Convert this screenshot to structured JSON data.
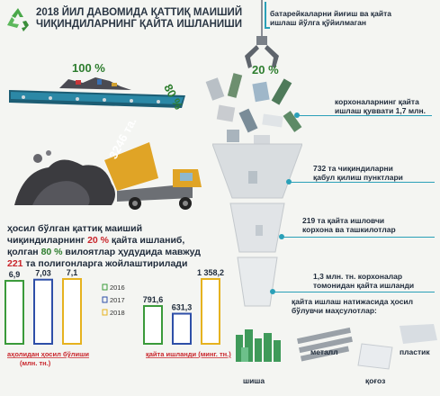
{
  "title": {
    "line1": "2018 ЙИЛ ДАВОМИДА ҚАТТИҚ МАИШИЙ",
    "line2": "ЧИҚИНДИЛАРНИНГ ҚАЙТА ИШЛАНИШИ"
  },
  "top_percent": "100 %",
  "conveyor_percent": "80 %",
  "crane_percent": "20 %",
  "truck_label": "3246 та.",
  "battery_note": {
    "line1": "батарейкаларни йиғиш ва қайта",
    "line2": "ишлаш йўлга қўйилмаган"
  },
  "description": {
    "p1": "ҳосил бўлган қаттиқ маиший",
    "p2a": "чиқиндиларнинг ",
    "p2b": "20 %",
    "p2c": " қайта ишланиб,",
    "p3a": "қолган ",
    "p3b": "80 %",
    "p3c": " вилоятлар ҳудудида мавжуд",
    "p4a": "221",
    "p4b": " та полигонларга жойлаштирилади"
  },
  "funnel_labels": [
    {
      "line1": "корхоналарнинг қайта",
      "line2": "ишлаш қуввати 1,7 млн."
    },
    {
      "line1": "732 та чиқиндиларни",
      "line2": "қабул қилиш пунктлари"
    },
    {
      "line1": "219 та қайта ишловчи",
      "line2": "корхона ва ташкилотлар"
    },
    {
      "line1": "1,3 млн. тн. корхоналар",
      "line2": "томонидан қайта ишланди"
    }
  ],
  "products": {
    "title1": "қайта ишлаш натижасида ҳосил",
    "title2": "бўлувчи маҳсулотлар:",
    "items": [
      "шиша",
      "металл",
      "пластик",
      "қоғоз"
    ]
  },
  "chart_data": {
    "type": "bar",
    "series_names": [
      "2016",
      "2017",
      "2018"
    ],
    "colors": [
      "#3a9a3a",
      "#2e4fa8",
      "#e6b21f"
    ],
    "groups": [
      {
        "label1": "аҳолидан ҳосил бўлиши",
        "label2": "(млн. тн.)",
        "values": [
          6.9,
          7.03,
          7.1
        ],
        "labels": [
          "6,9",
          "7,03",
          "7,1"
        ]
      },
      {
        "label1": "қайта ишланди (минг. тн.)",
        "label2": "",
        "values": [
          791.6,
          631.3,
          1358.2
        ],
        "labels": [
          "791,6",
          "631,3",
          "1 358,2"
        ]
      }
    ]
  }
}
